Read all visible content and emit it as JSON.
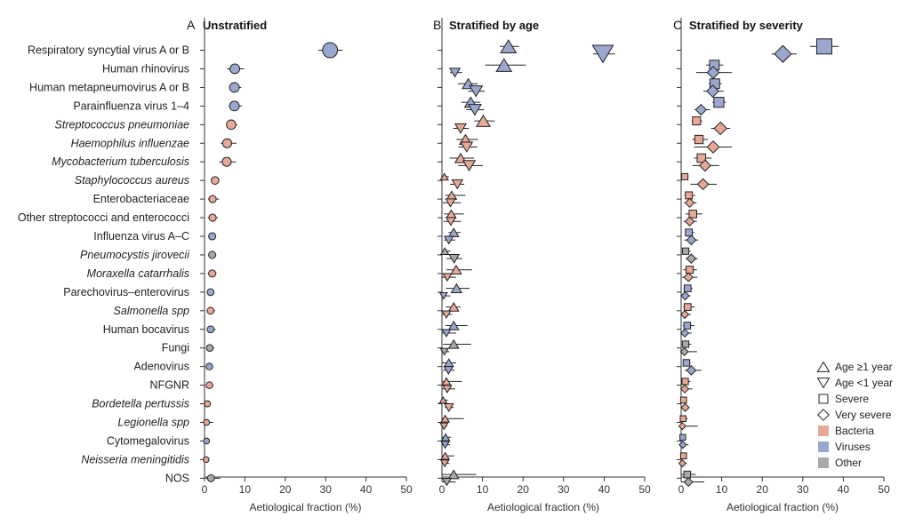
{
  "colors": {
    "bacteria": "#e8a898",
    "viruses": "#9aa8cf",
    "other": "#a9a9a9",
    "axis": "#333333"
  },
  "pathogens": [
    {
      "name": "Respiratory syncytial virus A or B",
      "italic": false,
      "group": "viruses"
    },
    {
      "name": "Human rhinovirus",
      "italic": false,
      "group": "viruses"
    },
    {
      "name": "Human metapneumovirus A or B",
      "italic": false,
      "group": "viruses"
    },
    {
      "name": "Parainfluenza virus 1–4",
      "italic": false,
      "group": "viruses"
    },
    {
      "name": "Streptococcus pneumoniae",
      "italic": true,
      "group": "bacteria"
    },
    {
      "name": "Haemophilus influenzae",
      "italic": true,
      "group": "bacteria"
    },
    {
      "name": "Mycobacterium tuberculosis",
      "italic": true,
      "group": "bacteria"
    },
    {
      "name": "Staphylococcus aureus",
      "italic": true,
      "group": "bacteria"
    },
    {
      "name": "Enterobacteriaceae",
      "italic": false,
      "group": "bacteria"
    },
    {
      "name": "Other streptococci and enterococci",
      "italic": false,
      "group": "bacteria"
    },
    {
      "name": "Influenza virus A–C",
      "italic": false,
      "group": "viruses"
    },
    {
      "name": "Pneumocystis jirovecii",
      "italic": true,
      "group": "other"
    },
    {
      "name": "Moraxella catarrhalis",
      "italic": true,
      "group": "bacteria"
    },
    {
      "name": "Parechovirus–enterovirus",
      "italic": false,
      "group": "viruses"
    },
    {
      "name": "Salmonella spp",
      "italic": true,
      "group": "bacteria"
    },
    {
      "name": "Human bocavirus",
      "italic": false,
      "group": "viruses"
    },
    {
      "name": "Fungi",
      "italic": false,
      "group": "other"
    },
    {
      "name": "Adenovirus",
      "italic": false,
      "group": "viruses"
    },
    {
      "name": "NFGNR",
      "italic": false,
      "group": "bacteria"
    },
    {
      "name": "Bordetella pertussis",
      "italic": true,
      "group": "bacteria"
    },
    {
      "name": "Legionella spp",
      "italic": true,
      "group": "bacteria"
    },
    {
      "name": "Cytomegalovirus",
      "italic": false,
      "group": "viruses"
    },
    {
      "name": "Neisseria meningitidis",
      "italic": true,
      "group": "bacteria"
    },
    {
      "name": "NOS",
      "italic": false,
      "group": "other"
    }
  ],
  "legend": {
    "markers": [
      {
        "shape": "triangle-up",
        "label": "Age ≥1 year"
      },
      {
        "shape": "triangle-down",
        "label": "Age <1 year"
      },
      {
        "shape": "square",
        "label": "Severe"
      },
      {
        "shape": "diamond",
        "label": "Very severe"
      }
    ],
    "groups": [
      {
        "key": "bacteria",
        "label": "Bacteria"
      },
      {
        "key": "viruses",
        "label": "Viruses"
      },
      {
        "key": "other",
        "label": "Other"
      }
    ]
  },
  "chart_data": [
    {
      "panel": "A",
      "title": "Unstratified",
      "type": "scatter",
      "xlabel": "Aetiological fraction (%)",
      "xlim": [
        0,
        50
      ],
      "xticks": [
        0,
        10,
        20,
        30,
        40,
        50
      ],
      "series": [
        {
          "name": "",
          "marker": "circle",
          "values": [
            31.1,
            7.5,
            7.4,
            7.4,
            6.6,
            5.6,
            5.5,
            2.6,
            2.0,
            2.0,
            1.9,
            1.9,
            1.9,
            1.5,
            1.5,
            1.5,
            1.3,
            1.2,
            1.2,
            0.7,
            0.5,
            0.5,
            0.4,
            1.6
          ],
          "ci_low": [
            28.2,
            5.6,
            6.1,
            6.0,
            5.3,
            4.0,
            3.6,
            1.8,
            0.9,
            0.8,
            1.1,
            1.1,
            0.8,
            0.8,
            0.5,
            0.6,
            0.4,
            0.6,
            0.5,
            0.0,
            0.0,
            0.1,
            0.0,
            0.2
          ],
          "ci_high": [
            34.2,
            9.8,
            9.1,
            9.3,
            8.1,
            7.9,
            7.8,
            3.5,
            3.6,
            3.3,
            2.8,
            2.9,
            3.0,
            2.4,
            2.6,
            2.8,
            2.4,
            2.0,
            2.2,
            1.3,
            2.1,
            1.0,
            1.1,
            3.9
          ]
        }
      ]
    },
    {
      "panel": "B",
      "title": "Stratified by age",
      "type": "scatter",
      "xlabel": "Aetiological fraction (%)",
      "xlim": [
        0,
        50
      ],
      "xticks": [
        0,
        10,
        20,
        30,
        40,
        50
      ],
      "series": [
        {
          "name": "Age ≥1 year",
          "marker": "triangle-up",
          "values": [
            16.4,
            15.3,
            6.5,
            7.1,
            10.2,
            5.8,
            4.6,
            0.6,
            2.4,
            2.3,
            2.9,
            0.7,
            3.5,
            3.6,
            2.9,
            2.9,
            2.9,
            1.7,
            1.1,
            0.3,
            0.8,
            0.9,
            0.8,
            2.9
          ],
          "ci_low": [
            14.3,
            10.7,
            3.9,
            4.8,
            8.0,
            3.6,
            1.9,
            0.0,
            0.8,
            0.5,
            1.6,
            0.0,
            1.1,
            1.0,
            1.0,
            0.9,
            0.3,
            0.0,
            0.0,
            0.0,
            0.0,
            0.0,
            0.0,
            0.0
          ],
          "ci_high": [
            19.0,
            20.7,
            8.8,
            9.5,
            13.0,
            8.9,
            7.9,
            1.7,
            5.8,
            5.4,
            4.6,
            2.1,
            7.4,
            6.8,
            4.6,
            6.3,
            7.2,
            3.5,
            4.9,
            1.4,
            5.4,
            2.2,
            3.0,
            8.5
          ]
        },
        {
          "name": "Age <1 year",
          "marker": "triangle-down",
          "values": [
            39.7,
            3.2,
            8.4,
            8.1,
            4.6,
            6.1,
            6.7,
            3.8,
            2.1,
            2.2,
            1.7,
            3.0,
            1.3,
            0.4,
            1.1,
            1.1,
            0.6,
            1.6,
            1.3,
            1.7,
            0.5,
            0.8,
            0.7,
            1.2
          ],
          "ci_low": [
            37.3,
            2.0,
            6.5,
            6.0,
            2.8,
            4.1,
            4.0,
            2.0,
            0.2,
            0.4,
            0.5,
            1.1,
            0.0,
            0.0,
            0.0,
            0.0,
            0.0,
            0.3,
            0.0,
            0.7,
            0.0,
            0.0,
            0.0,
            0.0
          ],
          "ci_high": [
            42.6,
            5.0,
            10.5,
            10.4,
            6.6,
            8.7,
            10.1,
            5.5,
            4.7,
            4.7,
            3.3,
            5.0,
            3.5,
            2.1,
            2.5,
            3.5,
            1.8,
            3.1,
            3.3,
            2.9,
            1.3,
            2.0,
            1.8,
            3.4
          ]
        }
      ]
    },
    {
      "panel": "C",
      "title": "Stratified by severity",
      "type": "scatter",
      "xlabel": "Aetiological fraction (%)",
      "xlim": [
        0,
        50
      ],
      "xticks": [
        0,
        10,
        20,
        30,
        40,
        50
      ],
      "series": [
        {
          "name": "Severe",
          "marker": "square",
          "values": [
            35.3,
            8.2,
            8.3,
            9.3,
            3.8,
            4.4,
            5.0,
            0.9,
            1.9,
            2.9,
            1.9,
            1.1,
            2.1,
            1.6,
            1.6,
            1.5,
            1.1,
            1.3,
            1.0,
            0.6,
            0.5,
            0.4,
            0.6,
            1.5
          ],
          "ci_low": [
            31.8,
            6.2,
            6.8,
            7.7,
            2.6,
            2.7,
            3.2,
            0.3,
            0.8,
            1.1,
            1.0,
            0.3,
            0.5,
            0.6,
            0.5,
            0.4,
            0.1,
            0.5,
            0.2,
            0.0,
            0.0,
            0.0,
            0.0,
            0.1
          ],
          "ci_high": [
            38.9,
            10.4,
            10.0,
            11.1,
            5.2,
            6.6,
            7.5,
            1.8,
            3.5,
            5.2,
            3.2,
            2.3,
            3.9,
            2.8,
            3.4,
            3.3,
            2.5,
            2.3,
            2.3,
            1.4,
            1.6,
            1.0,
            1.4,
            3.6
          ]
        },
        {
          "name": "Very severe",
          "marker": "diamond",
          "values": [
            25.1,
            7.9,
            7.8,
            4.9,
            9.7,
            7.9,
            5.9,
            5.4,
            2.1,
            2.1,
            2.5,
            2.5,
            1.8,
            1.0,
            0.9,
            0.9,
            0.8,
            2.5,
            0.9,
            1.0,
            0.3,
            0.4,
            0.3,
            1.8
          ],
          "ci_low": [
            22.3,
            3.7,
            5.5,
            3.3,
            7.4,
            3.2,
            2.8,
            2.3,
            0.7,
            0.6,
            0.8,
            1.1,
            0.2,
            0.0,
            0.0,
            0.0,
            0.0,
            0.9,
            0.0,
            0.1,
            0.0,
            0.0,
            0.0,
            0.0
          ],
          "ci_high": [
            28.5,
            12.5,
            10.5,
            7.1,
            12.1,
            12.5,
            9.4,
            8.8,
            3.8,
            3.9,
            4.2,
            4.1,
            4.0,
            2.3,
            2.4,
            2.6,
            3.9,
            5.0,
            2.8,
            1.9,
            4.1,
            1.8,
            1.4,
            5.7
          ]
        }
      ]
    }
  ]
}
